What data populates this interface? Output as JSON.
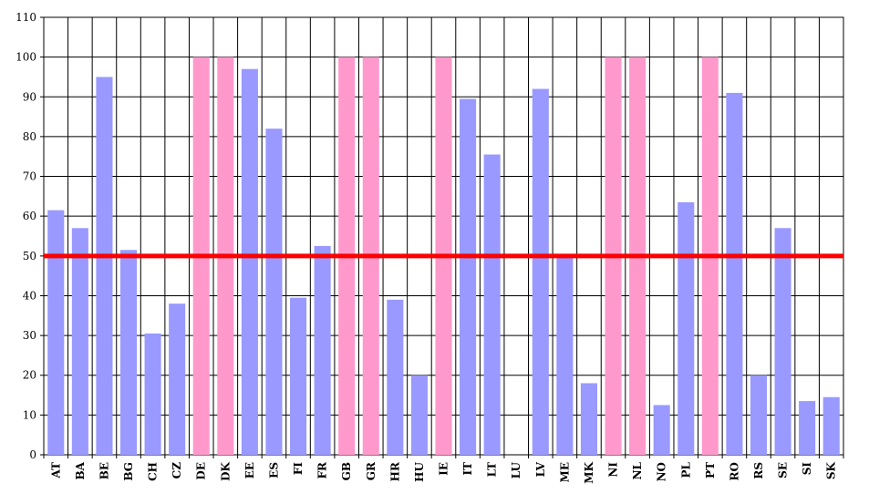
{
  "chart_data": {
    "type": "bar",
    "title": "",
    "xlabel": "",
    "ylabel": "",
    "ylim": [
      0,
      110
    ],
    "yticks": [
      0,
      10,
      20,
      30,
      40,
      50,
      60,
      70,
      80,
      90,
      100,
      110
    ],
    "grid": true,
    "categories": [
      "AT",
      "BA",
      "BE",
      "BG",
      "CH",
      "CZ",
      "DE",
      "DK",
      "EE",
      "ES",
      "FI",
      "FR",
      "GB",
      "GR",
      "HR",
      "HU",
      "IE",
      "IT",
      "LT",
      "LU",
      "LV",
      "ME",
      "MK",
      "NI",
      "NL",
      "NO",
      "PL",
      "PT",
      "RO",
      "RS",
      "SE",
      "SI",
      "SK"
    ],
    "values": [
      61.5,
      57,
      95,
      51.5,
      30.5,
      38,
      100,
      100,
      97,
      82,
      39.5,
      52.5,
      100,
      100,
      39,
      20,
      100,
      89.5,
      75.5,
      0,
      92,
      50.5,
      18,
      100,
      100,
      12.5,
      63.5,
      100,
      91,
      20,
      57,
      13.5,
      14.5
    ],
    "highlighted": [
      "DE",
      "DK",
      "GB",
      "GR",
      "IE",
      "NI",
      "NL",
      "PT"
    ],
    "reference_line": 50,
    "colors": {
      "bar": "#9999ff",
      "highlight": "#ff99cc",
      "reference_line": "#ff0000",
      "grid": "#000000"
    }
  }
}
